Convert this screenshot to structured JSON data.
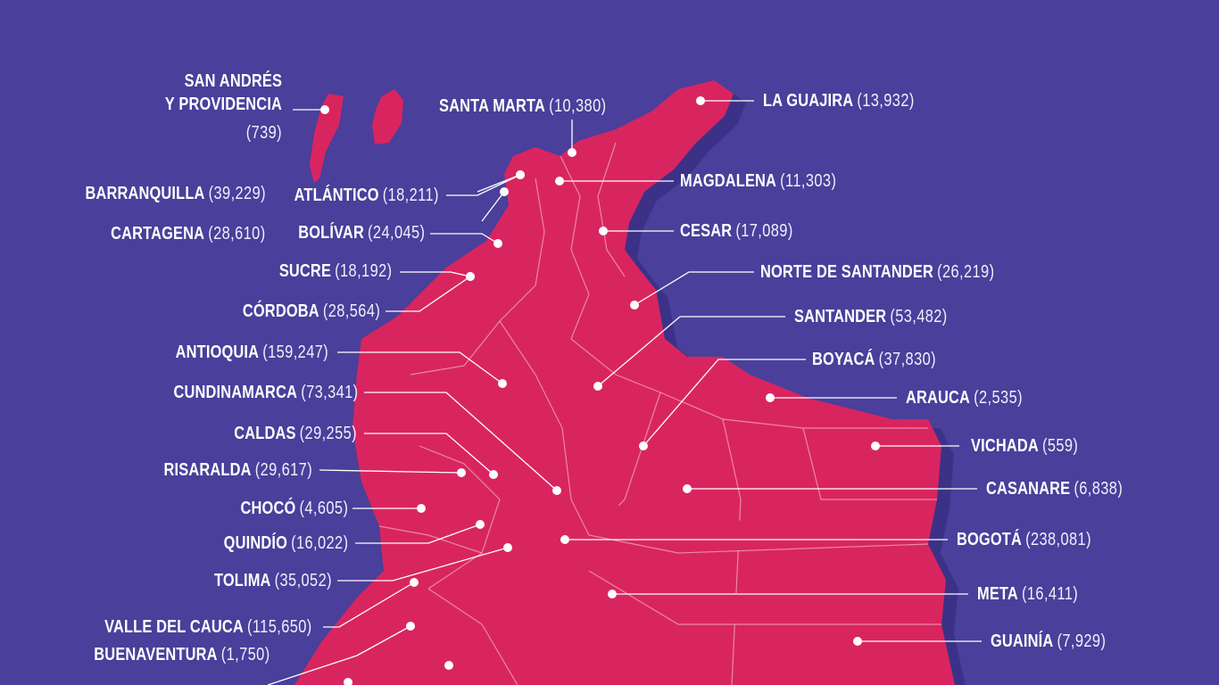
{
  "colors": {
    "background": "#4a3f9a",
    "land": "#d9255f",
    "shadow": "#3b3288",
    "leader": "#ffffff",
    "marker": "#ffffff"
  },
  "regions": [
    {
      "id": "san-andres",
      "name": "SAN ANDRÉS\nY PROVIDENCIA",
      "count": "(739)"
    },
    {
      "id": "santa-marta",
      "name": "SANTA MARTA",
      "count": "(10,380)"
    },
    {
      "id": "la-guajira",
      "name": "LA GUAJIRA",
      "count": "(13,932)"
    },
    {
      "id": "barranquilla",
      "name": "BARRANQUILLA",
      "count": "(39,229)"
    },
    {
      "id": "atlantico",
      "name": "ATLÁNTICO",
      "count": "(18,211)"
    },
    {
      "id": "magdalena",
      "name": "MAGDALENA",
      "count": "(11,303)"
    },
    {
      "id": "cartagena",
      "name": "CARTAGENA",
      "count": "(28,610)"
    },
    {
      "id": "bolivar",
      "name": "BOLÍVAR",
      "count": "(24,045)"
    },
    {
      "id": "cesar",
      "name": "CESAR",
      "count": "(17,089)"
    },
    {
      "id": "sucre",
      "name": "SUCRE",
      "count": "(18,192)"
    },
    {
      "id": "norte-de-santander",
      "name": "NORTE DE SANTANDER",
      "count": "(26,219)"
    },
    {
      "id": "cordoba",
      "name": "CÓRDOBA",
      "count": "(28,564)"
    },
    {
      "id": "santander",
      "name": "SANTANDER",
      "count": "(53,482)"
    },
    {
      "id": "antioquia",
      "name": "ANTIOQUIA",
      "count": "(159,247)"
    },
    {
      "id": "boyaca",
      "name": "BOYACÁ",
      "count": "(37,830)"
    },
    {
      "id": "cundinamarca",
      "name": "CUNDINAMARCA",
      "count": "(73,341)"
    },
    {
      "id": "arauca",
      "name": "ARAUCA",
      "count": "(2,535)"
    },
    {
      "id": "caldas",
      "name": "CALDAS",
      "count": "(29,255)"
    },
    {
      "id": "vichada",
      "name": "VICHADA",
      "count": "(559)"
    },
    {
      "id": "risaralda",
      "name": "RISARALDA",
      "count": "(29,617)"
    },
    {
      "id": "casanare",
      "name": "CASANARE",
      "count": "(6,838)"
    },
    {
      "id": "choco",
      "name": "CHOCÓ",
      "count": "(4,605)"
    },
    {
      "id": "quindio",
      "name": "QUINDÍO",
      "count": "(16,022)"
    },
    {
      "id": "bogota",
      "name": "BOGOTÁ",
      "count": "(238,081)"
    },
    {
      "id": "tolima",
      "name": "TOLIMA",
      "count": "(35,052)"
    },
    {
      "id": "meta",
      "name": "META",
      "count": "(16,411)"
    },
    {
      "id": "valle-del-cauca",
      "name": "VALLE DEL CAUCA",
      "count": "(115,650)"
    },
    {
      "id": "buenaventura",
      "name": "BUENAVENTURA",
      "count": "(1,750)"
    },
    {
      "id": "guainia",
      "name": "GUAINÍA",
      "count": "(7,929)"
    }
  ]
}
